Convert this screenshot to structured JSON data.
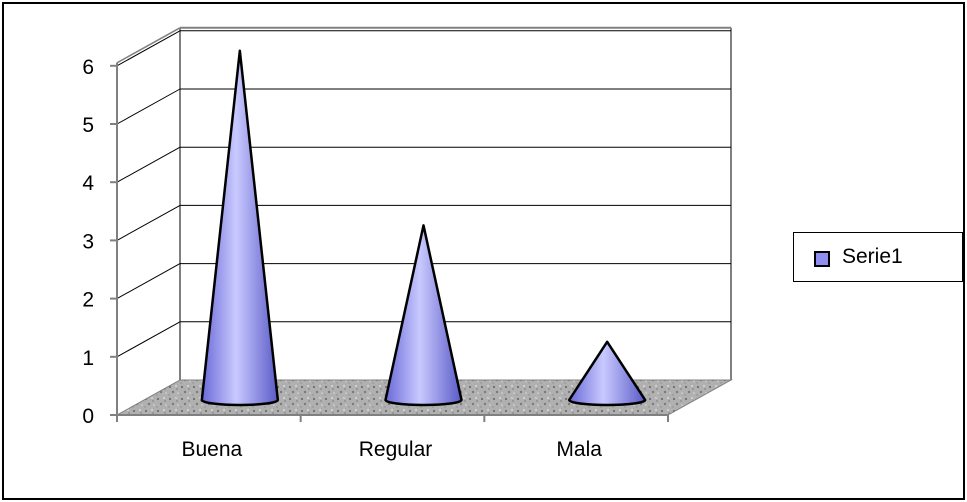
{
  "chart_data": {
    "type": "bar",
    "style": "3d-cone",
    "categories": [
      "Buena",
      "Regular",
      "Mala"
    ],
    "series": [
      {
        "name": "Serie1",
        "values": [
          6,
          3,
          1
        ]
      }
    ],
    "ylim": [
      0,
      6
    ],
    "yticks": [
      "0",
      "1",
      "2",
      "3",
      "4",
      "5",
      "6"
    ],
    "grid": true,
    "legend_position": "right",
    "series_color": "#8f8ff2",
    "floor_color": "#a8a8a8"
  }
}
